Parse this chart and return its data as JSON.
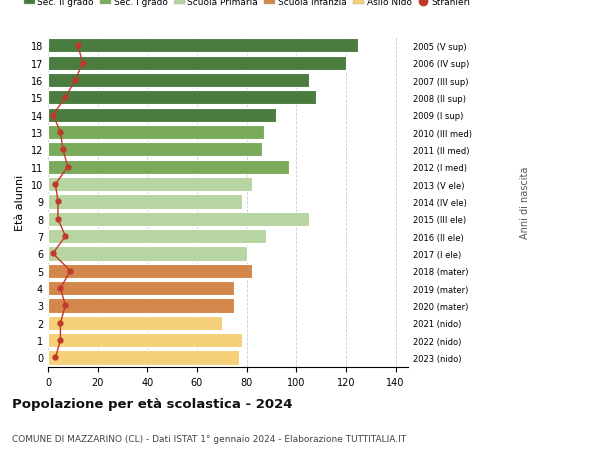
{
  "ages": [
    18,
    17,
    16,
    15,
    14,
    13,
    12,
    11,
    10,
    9,
    8,
    7,
    6,
    5,
    4,
    3,
    2,
    1,
    0
  ],
  "right_labels": [
    "2005 (V sup)",
    "2006 (IV sup)",
    "2007 (III sup)",
    "2008 (II sup)",
    "2009 (I sup)",
    "2010 (III med)",
    "2011 (II med)",
    "2012 (I med)",
    "2013 (V ele)",
    "2014 (IV ele)",
    "2015 (III ele)",
    "2016 (II ele)",
    "2017 (I ele)",
    "2018 (mater)",
    "2019 (mater)",
    "2020 (mater)",
    "2021 (nido)",
    "2022 (nido)",
    "2023 (nido)"
  ],
  "bar_values": [
    125,
    120,
    105,
    108,
    92,
    87,
    86,
    97,
    82,
    78,
    105,
    88,
    80,
    82,
    75,
    75,
    70,
    78,
    77
  ],
  "bar_colors": [
    "#4a7c3f",
    "#4a7c3f",
    "#4a7c3f",
    "#4a7c3f",
    "#4a7c3f",
    "#7aab5a",
    "#7aab5a",
    "#7aab5a",
    "#b8d4a0",
    "#b8d4a0",
    "#b8d4a0",
    "#b8d4a0",
    "#b8d4a0",
    "#d4874a",
    "#d4874a",
    "#d4874a",
    "#f5d078",
    "#f5d078",
    "#f5d078"
  ],
  "stranieri_values": [
    12,
    14,
    11,
    7,
    2,
    5,
    6,
    8,
    3,
    4,
    4,
    7,
    2,
    9,
    5,
    7,
    5,
    5,
    3
  ],
  "stranieri_color": "#c0392b",
  "legend_items": [
    {
      "label": "Sec. II grado",
      "color": "#4a7c3f"
    },
    {
      "label": "Sec. I grado",
      "color": "#7aab5a"
    },
    {
      "label": "Scuola Primaria",
      "color": "#b8d4a0"
    },
    {
      "label": "Scuola Infanzia",
      "color": "#d4874a"
    },
    {
      "label": "Asilo Nido",
      "color": "#f5d078"
    },
    {
      "label": "Stranieri",
      "color": "#c0392b"
    }
  ],
  "ylabel_left": "Età alunni",
  "ylabel_right": "Anni di nascita",
  "title": "Popolazione per età scolastica - 2024",
  "subtitle": "COMUNE DI MAZZARINO (CL) - Dati ISTAT 1° gennaio 2024 - Elaborazione TUTTITALIA.IT",
  "xlim": [
    0,
    145
  ],
  "xticks": [
    0,
    20,
    40,
    60,
    80,
    100,
    120,
    140
  ],
  "background_color": "#ffffff",
  "grid_color": "#cccccc",
  "bar_height": 0.82
}
